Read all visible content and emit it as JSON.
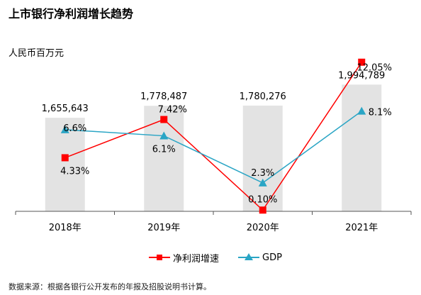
{
  "title": "上市银行净利润增长趋势",
  "unit_label": "人民币百万元",
  "source": "数据来源：根据各银行公开发布的年报及招股说明书计算。",
  "colors": {
    "bar": "#E3E3E3",
    "net": "#FF0000",
    "gdp": "#2AA5C5",
    "axis": "#555555"
  },
  "chart_data": {
    "type": "bar",
    "categories": [
      "2018年",
      "2019年",
      "2020年",
      "2021年"
    ],
    "bars": {
      "values": [
        1655643,
        1778487,
        1780276,
        1994789
      ],
      "labels": [
        "1,655,643",
        "1,778,487",
        "1,780,276",
        "1,994,789"
      ]
    },
    "series": [
      {
        "name": "净利润增速",
        "type": "line",
        "marker": "square",
        "color": "#FF0000",
        "values": [
          4.33,
          7.42,
          0.1,
          12.05
        ],
        "labels": [
          "4.33%",
          "7.42%",
          "0.10%",
          "12.05%"
        ]
      },
      {
        "name": "GDP",
        "type": "line",
        "marker": "triangle",
        "color": "#2AA5C5",
        "values": [
          6.6,
          6.1,
          2.3,
          8.1
        ],
        "labels": [
          "6.6%",
          "6.1%",
          "2.3%",
          "8.1%"
        ]
      }
    ],
    "legend_position": "bottom",
    "grid": false
  }
}
